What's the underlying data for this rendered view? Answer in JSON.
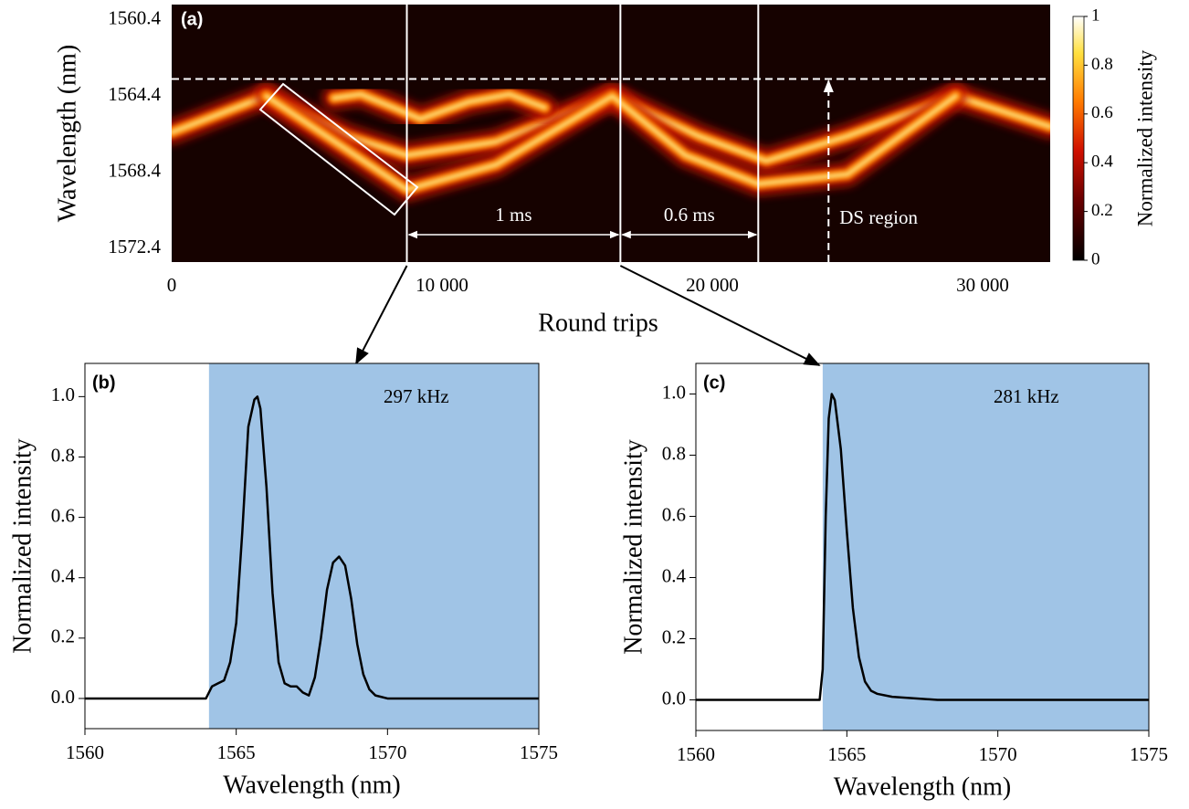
{
  "chart_data": [
    {
      "type": "heatmap",
      "label": "(a)",
      "xlabel": "Round trips",
      "ylabel": "Wavelength (nm)",
      "xlim": [
        0,
        32500
      ],
      "ylim": [
        1559.6,
        1573.1
      ],
      "y_inverted": true,
      "xticks": [
        0,
        {
          "value": 10000,
          "label": "10 000"
        },
        {
          "value": 20000,
          "label": "20 000"
        },
        {
          "value": 30000,
          "label": "30 000"
        }
      ],
      "yticks": [
        1560.4,
        1564.4,
        1568.4,
        1572.4
      ],
      "background": "#160200",
      "colorbar": {
        "label": "Normalized intensity",
        "lim": [
          0,
          1
        ],
        "ticks": [
          0,
          0.2,
          0.4,
          0.6,
          0.8,
          1
        ]
      },
      "traces": [
        {
          "x": [
            0,
            3500,
            6500,
            8700,
            12000,
            16300,
            19500,
            22000,
            25000,
            29000,
            32500
          ],
          "values": [
            1566.3,
            1564.4,
            1566.5,
            1567.5,
            1566.8,
            1564.4,
            1566.5,
            1567.8,
            1566.5,
            1564.4,
            1566.0
          ]
        },
        {
          "x": [
            3500,
            8700,
            12000,
            16300,
            19000,
            21700,
            25000,
            29000
          ],
          "values": [
            1564.4,
            1569.3,
            1568.0,
            1564.4,
            1567.5,
            1569.0,
            1568.5,
            1564.4
          ]
        },
        {
          "x": [
            6000,
            7000,
            8200,
            9200,
            11000,
            12500,
            13800
          ],
          "values": [
            1564.5,
            1564.3,
            1565.0,
            1565.6,
            1564.7,
            1564.3,
            1565.0
          ]
        }
      ],
      "markers": [
        8700,
        16600,
        21700
      ],
      "intervals": [
        "1 ms",
        "0.6 ms"
      ],
      "threshold": 1563.5,
      "ds_line": {
        "x": 24300,
        "label": "DS region"
      }
    },
    {
      "type": "line",
      "label": "(b)",
      "annotation": "297 kHz",
      "xlabel": "Wavelength (nm)",
      "ylabel": "Normalized intensity",
      "xlim": [
        1560,
        1575
      ],
      "xticks": [
        1560,
        1565,
        1570,
        1575
      ],
      "ylim": [
        -0.1,
        1.11
      ],
      "yticks": [
        {
          "value": 0,
          "label": "0.0"
        },
        0.2,
        0.4,
        0.6,
        0.8,
        {
          "value": 1,
          "label": "1.0"
        }
      ],
      "shade": [
        1564.1,
        1575
      ],
      "shade_color": "#a0c4e6",
      "color": "#000000",
      "x": [
        1560,
        1564.0,
        1564.1,
        1564.2,
        1564.4,
        1564.6,
        1564.8,
        1565.0,
        1565.2,
        1565.4,
        1565.6,
        1565.7,
        1565.8,
        1566.0,
        1566.2,
        1566.4,
        1566.6,
        1566.8,
        1567.0,
        1567.2,
        1567.4,
        1567.6,
        1567.8,
        1568.0,
        1568.2,
        1568.4,
        1568.6,
        1568.8,
        1569.0,
        1569.2,
        1569.4,
        1569.6,
        1570.0,
        1575
      ],
      "values": [
        0,
        0,
        0.02,
        0.04,
        0.05,
        0.06,
        0.12,
        0.25,
        0.55,
        0.9,
        0.99,
        1.0,
        0.96,
        0.7,
        0.35,
        0.12,
        0.05,
        0.04,
        0.04,
        0.02,
        0.01,
        0.07,
        0.2,
        0.36,
        0.45,
        0.47,
        0.44,
        0.33,
        0.18,
        0.08,
        0.03,
        0.01,
        0,
        0
      ]
    },
    {
      "type": "line",
      "label": "(c)",
      "annotation": "281 kHz",
      "xlabel": "Wavelength (nm)",
      "ylabel": "Normalized intensity",
      "xlim": [
        1560,
        1575
      ],
      "xticks": [
        1560,
        1565,
        1570,
        1575
      ],
      "ylim": [
        -0.1,
        1.1
      ],
      "yticks": [
        {
          "value": 0,
          "label": "0.0"
        },
        0.2,
        0.4,
        0.6,
        0.8,
        {
          "value": 1,
          "label": "1.0"
        }
      ],
      "shade": [
        1564.2,
        1575
      ],
      "shade_color": "#a0c4e6",
      "color": "#000000",
      "x": [
        1560,
        1564.1,
        1564.2,
        1564.3,
        1564.4,
        1564.5,
        1564.6,
        1564.8,
        1565.0,
        1565.2,
        1565.4,
        1565.6,
        1565.8,
        1566.0,
        1566.5,
        1568,
        1575
      ],
      "values": [
        0,
        0,
        0.1,
        0.6,
        0.92,
        1.0,
        0.98,
        0.82,
        0.55,
        0.3,
        0.14,
        0.06,
        0.03,
        0.02,
        0.01,
        0,
        0
      ]
    }
  ]
}
